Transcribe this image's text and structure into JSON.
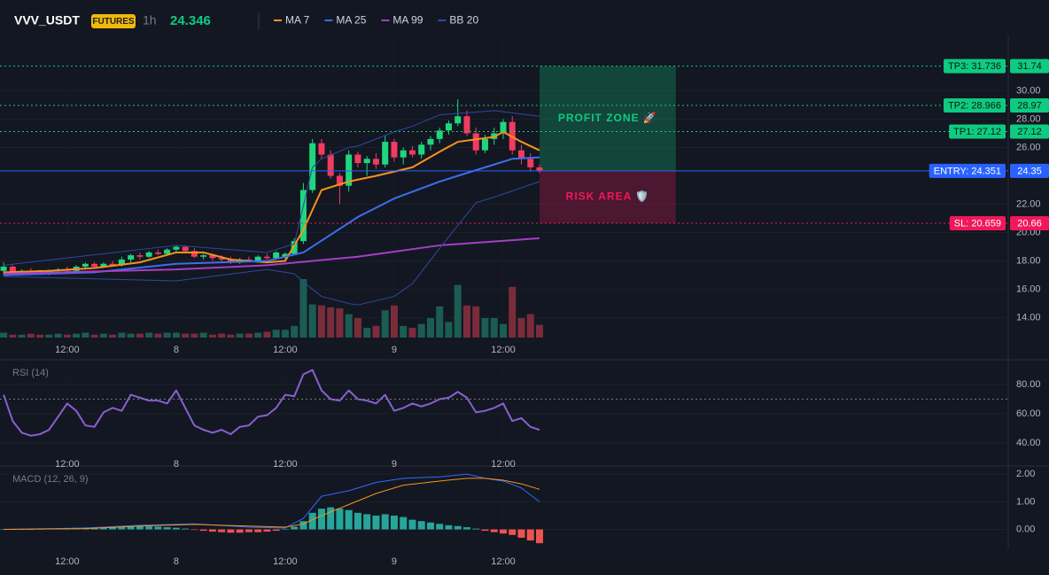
{
  "header": {
    "symbol": "VVV_USDT",
    "badge": "FUTURES",
    "timeframe": "1h",
    "price": "24.346"
  },
  "chart_data": [
    {
      "type": "candlestick",
      "x": [
        5,
        6,
        7,
        8,
        9,
        10,
        11,
        12,
        13,
        14,
        15,
        16,
        17,
        18,
        19,
        20,
        21,
        22,
        23,
        24,
        25,
        26,
        27,
        28,
        29,
        30,
        31,
        32,
        33,
        34,
        35,
        36,
        37,
        38,
        39,
        40,
        41,
        42,
        43,
        44,
        45,
        46,
        47,
        48,
        49,
        50,
        51,
        52,
        53,
        54,
        55,
        56,
        57,
        58,
        59,
        60,
        61,
        62,
        63,
        64
      ],
      "open": [
        17.3,
        17.6,
        17.2,
        17.3,
        17.2,
        17.1,
        17.3,
        17.4,
        17.3,
        17.6,
        17.8,
        17.6,
        17.8,
        17.7,
        18.1,
        18.4,
        18.3,
        18.6,
        18.5,
        18.8,
        19.0,
        18.7,
        18.3,
        18.4,
        18.2,
        18.1,
        17.9,
        18.1,
        18.0,
        18.3,
        18.2,
        18.3,
        18.5,
        19.4,
        23.0,
        26.3,
        25.5,
        24.0,
        23.3,
        25.5,
        24.9,
        25.2,
        24.8,
        26.4,
        25.3,
        25.8,
        25.5,
        26.2,
        26.6,
        27.2,
        27.7,
        28.2,
        27.0,
        25.8,
        26.6,
        27.0,
        27.8,
        25.8,
        25.2,
        24.6
      ],
      "high": [
        17.9,
        17.7,
        17.4,
        17.5,
        17.4,
        17.4,
        17.5,
        17.6,
        17.7,
        17.9,
        17.9,
        17.9,
        18.0,
        18.3,
        18.5,
        18.6,
        18.7,
        18.8,
        18.9,
        19.1,
        19.1,
        18.9,
        18.5,
        18.5,
        18.4,
        18.3,
        18.2,
        18.3,
        18.4,
        18.5,
        18.7,
        18.6,
        19.6,
        23.5,
        26.6,
        26.6,
        25.8,
        24.2,
        25.8,
        25.7,
        25.4,
        25.6,
        26.8,
        26.6,
        26.0,
        26.1,
        26.4,
        26.8,
        27.4,
        27.9,
        29.4,
        28.6,
        27.4,
        26.9,
        27.4,
        28.0,
        28.2,
        26.2,
        25.6,
        24.8
      ],
      "low": [
        17.0,
        17.1,
        17.0,
        17.1,
        17.0,
        17.0,
        17.2,
        17.2,
        17.2,
        17.4,
        17.5,
        17.5,
        17.6,
        17.6,
        17.9,
        18.1,
        18.2,
        18.4,
        18.4,
        18.6,
        18.6,
        18.2,
        18.1,
        18.0,
        17.9,
        17.8,
        17.8,
        17.9,
        17.9,
        18.1,
        18.1,
        18.1,
        18.4,
        19.2,
        22.8,
        25.2,
        23.8,
        22.0,
        22.9,
        24.6,
        24.0,
        24.5,
        24.6,
        25.0,
        24.8,
        25.3,
        25.2,
        25.8,
        26.3,
        26.9,
        27.5,
        26.8,
        25.5,
        25.6,
        26.2,
        26.6,
        25.5,
        24.8,
        24.3,
        24.2
      ],
      "close": [
        17.6,
        17.2,
        17.3,
        17.2,
        17.1,
        17.3,
        17.4,
        17.3,
        17.6,
        17.8,
        17.6,
        17.8,
        17.7,
        18.1,
        18.4,
        18.3,
        18.6,
        18.5,
        18.8,
        19.0,
        18.7,
        18.3,
        18.4,
        18.2,
        18.1,
        17.9,
        18.1,
        18.0,
        18.3,
        18.2,
        18.6,
        18.5,
        19.4,
        23.0,
        26.3,
        25.5,
        24.0,
        23.3,
        25.5,
        24.9,
        25.2,
        24.8,
        26.4,
        25.3,
        25.8,
        25.5,
        26.2,
        26.6,
        27.2,
        27.7,
        28.2,
        27.0,
        25.8,
        26.6,
        27.0,
        27.8,
        25.8,
        25.2,
        24.6,
        24.35
      ],
      "up_color": "#1fd67e",
      "down_color": "#f23b5f",
      "volume": {
        "values": [
          5,
          3,
          3,
          4,
          3,
          3,
          4,
          3,
          4,
          5,
          3,
          4,
          3,
          5,
          4,
          4,
          5,
          4,
          5,
          5,
          4,
          4,
          5,
          3,
          4,
          3,
          4,
          4,
          5,
          6,
          8,
          8,
          12,
          60,
          34,
          33,
          31,
          30,
          24,
          20,
          10,
          12,
          28,
          33,
          12,
          10,
          14,
          20,
          32,
          16,
          54,
          33,
          32,
          20,
          20,
          14,
          52,
          20,
          24,
          13
        ],
        "ylim": [
          0,
          100
        ],
        "up_color": "#1b5d52",
        "down_color": "#7a2c3b"
      },
      "series": [
        {
          "name": "MA 7",
          "color": "#f7931a",
          "width": 2,
          "x": [
            5,
            10,
            15,
            20,
            24,
            27,
            30,
            34,
            36,
            38,
            40,
            43,
            46,
            50,
            53,
            55,
            59,
            60,
            62,
            64
          ],
          "values": [
            17.2,
            17.3,
            17.5,
            17.9,
            18.6,
            18.6,
            18.1,
            17.9,
            18.0,
            20.2,
            23.0,
            23.6,
            24.0,
            24.6,
            25.7,
            26.4,
            26.75,
            27.1,
            26.4,
            25.8
          ]
        },
        {
          "name": "MA 25",
          "color": "#3d6ef0",
          "width": 2,
          "x": [
            5,
            15,
            24,
            34,
            38,
            44,
            48,
            53,
            58,
            61,
            64
          ],
          "values": [
            17.0,
            17.2,
            17.8,
            18.0,
            18.6,
            21.1,
            22.4,
            23.6,
            24.6,
            25.2,
            25.3
          ]
        },
        {
          "name": "MA 99",
          "color": "#a43fc4",
          "width": 2,
          "x": [
            5,
            24,
            34,
            44,
            53,
            64
          ],
          "values": [
            17.1,
            17.4,
            17.7,
            18.3,
            19.1,
            19.6
          ]
        },
        {
          "name": "BB 20",
          "color": "#2b4aa0",
          "width": 1,
          "x": [
            5,
            24,
            34,
            37,
            39,
            40,
            43,
            44,
            48,
            50,
            53,
            57,
            59,
            64
          ],
          "upper": [
            17.7,
            19.1,
            18.6,
            19.2,
            24.6,
            25.2,
            26.0,
            26.1,
            27.1,
            27.5,
            28.3,
            28.5,
            28.6,
            28.2
          ],
          "lower": [
            16.9,
            16.6,
            17.4,
            17.1,
            16.0,
            15.5,
            15.0,
            14.9,
            15.5,
            16.4,
            18.9,
            22.1,
            22.5,
            23.6
          ]
        }
      ],
      "xlim": [
        4.6,
        115.6
      ],
      "xticks": [
        {
          "value": 12,
          "label": "12:00"
        },
        {
          "value": 24,
          "label": "8"
        },
        {
          "value": 36,
          "label": "12:00"
        },
        {
          "value": 48,
          "label": "9"
        },
        {
          "value": 60,
          "label": "12:00"
        }
      ],
      "ylim": [
        12.6,
        33.9
      ],
      "yticks": [
        {
          "value": 30,
          "label": "30.00"
        },
        {
          "value": 28,
          "label": "28.00"
        },
        {
          "value": 26,
          "label": "26.00"
        },
        {
          "value": 22,
          "label": "22.00"
        },
        {
          "value": 20,
          "label": "20.00"
        },
        {
          "value": 18,
          "label": "18.00"
        },
        {
          "value": 16,
          "label": "16.00"
        },
        {
          "value": 14,
          "label": "14.00"
        }
      ],
      "grid": true,
      "zones": [
        {
          "label": "PROFIT ZONE 🚀",
          "from": 24.351,
          "to": 31.736,
          "x": [
            64,
            79
          ],
          "color": "#0ecb81"
        },
        {
          "label": "RISK AREA 🛡️",
          "from": 20.659,
          "to": 24.351,
          "x": [
            64,
            79
          ],
          "color": "#f0185a"
        }
      ],
      "levels": [
        {
          "label": "TP3: 31.736",
          "price_label": "31.74",
          "value": 31.736,
          "color": "#0ecb81",
          "text_color": "#0b1a12",
          "style": "dotted"
        },
        {
          "label": "TP2: 28.966",
          "price_label": "28.97",
          "value": 28.966,
          "color": "#0ecb81",
          "text_color": "#0b1a12",
          "style": "dotted"
        },
        {
          "label": "TP1: 27.12",
          "price_label": "27.12",
          "value": 27.12,
          "color": "#0ecb81",
          "text_color": "#0b1a12",
          "style": "dotted"
        },
        {
          "label": "ENTRY: 24.351",
          "price_label": "24.35",
          "value": 24.351,
          "color": "#2962ff",
          "text_color": "#ffffff",
          "style": "solid"
        },
        {
          "label": "SL: 20.659",
          "price_label": "20.66",
          "value": 20.659,
          "color": "#f0185a",
          "text_color": "#ffffff",
          "style": "dotted"
        }
      ]
    },
    {
      "type": "line",
      "title": "RSI (14)",
      "series": [
        {
          "color": "#8a5fd0",
          "width": 2,
          "x": [
            5,
            6,
            7,
            8,
            9,
            10,
            11,
            12,
            13,
            14,
            15,
            16,
            17,
            18,
            19,
            20,
            21,
            22,
            23,
            24,
            25,
            26,
            27,
            28,
            29,
            30,
            31,
            32,
            33,
            34,
            35,
            36,
            37,
            38,
            39,
            40,
            41,
            42,
            43,
            44,
            45,
            46,
            47,
            48,
            49,
            50,
            51,
            52,
            53,
            54,
            55,
            56,
            57,
            58,
            59,
            60,
            61,
            62,
            63,
            64
          ],
          "values": [
            73,
            55,
            47,
            45,
            46,
            49,
            58,
            67,
            62,
            52,
            51,
            61,
            64,
            62,
            73,
            71,
            69,
            69,
            67,
            76,
            64,
            52,
            49,
            47,
            49,
            46,
            51,
            52,
            58,
            59,
            64,
            73,
            72,
            87,
            90,
            76,
            70,
            69,
            76,
            70,
            69,
            67,
            73,
            62,
            64,
            67,
            65,
            67,
            70,
            71,
            75,
            71,
            61,
            62,
            64,
            67,
            55,
            57,
            51,
            49
          ]
        }
      ],
      "xlim": [
        4.6,
        115.6
      ],
      "xticks": [
        {
          "value": 12,
          "label": "12:00"
        },
        {
          "value": 24,
          "label": "8"
        },
        {
          "value": 36,
          "label": "12:00"
        },
        {
          "value": 48,
          "label": "9"
        },
        {
          "value": 60,
          "label": "12:00"
        }
      ],
      "ylim": [
        33.9,
        95.8
      ],
      "yticks": [
        {
          "value": 80,
          "label": "80.00"
        },
        {
          "value": 60,
          "label": "60.00"
        },
        {
          "value": 40,
          "label": "40.00"
        }
      ],
      "grid": true,
      "levels": [
        {
          "value": 70,
          "color": "#787b86",
          "style": "dotted"
        }
      ]
    },
    {
      "type": "bar",
      "title": "MACD (12, 26, 9)",
      "x": [
        5,
        6,
        7,
        8,
        9,
        10,
        11,
        12,
        13,
        14,
        15,
        16,
        17,
        18,
        19,
        20,
        21,
        22,
        23,
        24,
        25,
        26,
        27,
        28,
        29,
        30,
        31,
        32,
        33,
        34,
        35,
        36,
        37,
        38,
        39,
        40,
        41,
        42,
        43,
        44,
        45,
        46,
        47,
        48,
        49,
        50,
        51,
        52,
        53,
        54,
        55,
        56,
        57,
        58,
        59,
        60,
        61,
        62,
        63,
        64
      ],
      "values": [
        0,
        0,
        0,
        0,
        0.01,
        0.02,
        0.03,
        0.05,
        0.06,
        0.07,
        0.08,
        0.08,
        0.09,
        0.1,
        0.12,
        0.12,
        0.11,
        0.1,
        0.08,
        0.06,
        0.03,
        -0.02,
        -0.05,
        -0.08,
        -0.1,
        -0.12,
        -0.12,
        -0.1,
        -0.1,
        -0.08,
        -0.05,
        0.02,
        0.1,
        0.3,
        0.6,
        0.75,
        0.8,
        0.75,
        0.7,
        0.6,
        0.55,
        0.5,
        0.55,
        0.5,
        0.45,
        0.35,
        0.3,
        0.25,
        0.2,
        0.15,
        0.12,
        0.08,
        0.03,
        -0.05,
        -0.1,
        -0.15,
        -0.2,
        -0.3,
        -0.4,
        -0.5
      ],
      "up_color": "#26a69a",
      "down_color": "#ef5350",
      "series": [
        {
          "color": "#2f6bff",
          "width": 1,
          "x": [
            5,
            14,
            20,
            26,
            32,
            36,
            38,
            40,
            43,
            46,
            49,
            53,
            56,
            58,
            60,
            62,
            64
          ],
          "values": [
            0,
            0.05,
            0.15,
            0.2,
            0.08,
            0.05,
            0.4,
            1.2,
            1.4,
            1.7,
            1.85,
            1.9,
            2.0,
            1.85,
            1.75,
            1.5,
            1.0
          ]
        },
        {
          "color": "#f7931a",
          "width": 1,
          "x": [
            5,
            14,
            20,
            26,
            32,
            36,
            38,
            40,
            43,
            46,
            49,
            53,
            56,
            58,
            60,
            62,
            64
          ],
          "values": [
            0,
            0.03,
            0.12,
            0.18,
            0.12,
            0.08,
            0.2,
            0.5,
            0.9,
            1.3,
            1.6,
            1.75,
            1.85,
            1.85,
            1.78,
            1.65,
            1.45
          ]
        }
      ],
      "xlim": [
        4.6,
        115.6
      ],
      "xticks": [
        {
          "value": 12,
          "label": "12:00"
        },
        {
          "value": 24,
          "label": "8"
        },
        {
          "value": 36,
          "label": "12:00"
        },
        {
          "value": 48,
          "label": "9"
        },
        {
          "value": 60,
          "label": "12:00"
        }
      ],
      "ylim": [
        -0.72,
        2.23
      ],
      "yticks": [
        {
          "value": 2,
          "label": "2.00"
        },
        {
          "value": 1,
          "label": "1.00"
        },
        {
          "value": 0,
          "label": "0.00"
        }
      ],
      "grid": true
    }
  ]
}
